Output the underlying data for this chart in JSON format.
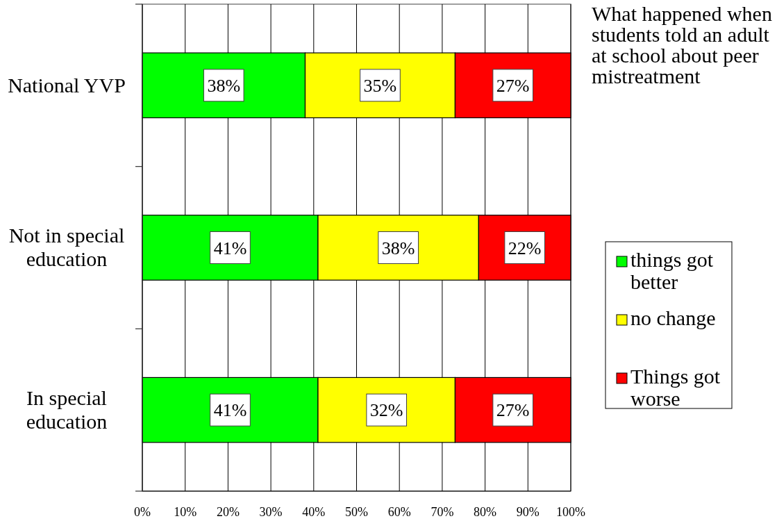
{
  "chart_data": {
    "type": "bar",
    "orientation": "horizontal",
    "stacked": true,
    "title": "What happened when students told an adult at school about peer mistreatment",
    "categories": [
      "National YVP",
      "Not in special education",
      "In special education"
    ],
    "series": [
      {
        "name": "things got better",
        "color": "#00ff00",
        "values": [
          38,
          41,
          41
        ],
        "value_labels": [
          "38%",
          "41%",
          "41%"
        ]
      },
      {
        "name": "no change",
        "color": "#ffff00",
        "values": [
          35,
          37.5,
          32
        ],
        "value_labels": [
          "35%",
          "38%",
          "32%"
        ]
      },
      {
        "name": "Things got worse",
        "color": "#ff0000",
        "values": [
          27,
          21.5,
          27
        ],
        "value_labels": [
          "27%",
          "22%",
          "27%"
        ]
      }
    ],
    "xlim": [
      0,
      100
    ],
    "xticks": [
      {
        "value": 0,
        "label": "0%"
      },
      {
        "value": 10,
        "label": "10%"
      },
      {
        "value": 20,
        "label": "20%"
      },
      {
        "value": 30,
        "label": "30%"
      },
      {
        "value": 40,
        "label": "40%"
      },
      {
        "value": 50,
        "label": "50%"
      },
      {
        "value": 60,
        "label": "60%"
      },
      {
        "value": 70,
        "label": "70%"
      },
      {
        "value": 80,
        "label": "80%"
      },
      {
        "value": 90,
        "label": "90%"
      },
      {
        "value": 100,
        "label": "100%"
      }
    ],
    "grid": "x",
    "legend": "right"
  }
}
